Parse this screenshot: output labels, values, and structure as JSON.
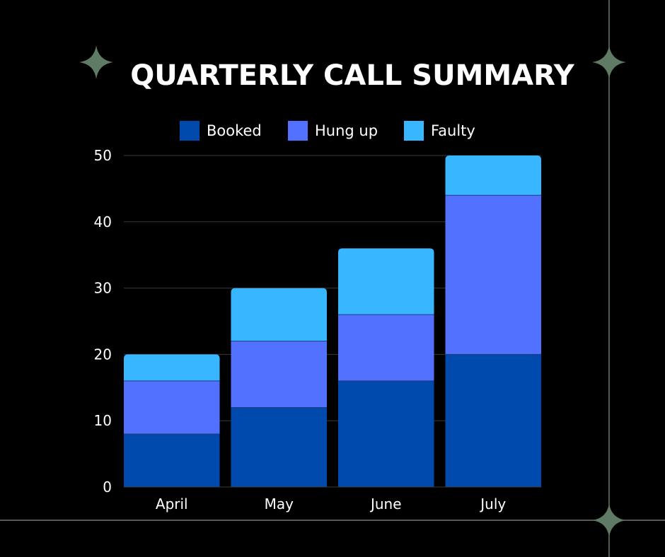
{
  "chart_data": {
    "type": "bar",
    "stacked": true,
    "title": "QUARTERLY CALL SUMMARY",
    "categories": [
      "April",
      "May",
      "June",
      "July"
    ],
    "series": [
      {
        "name": "Booked",
        "values": [
          8,
          12,
          16,
          20
        ],
        "color": "#004aad"
      },
      {
        "name": "Hung up",
        "values": [
          8,
          10,
          10,
          24
        ],
        "color": "#5271ff"
      },
      {
        "name": "Faulty",
        "values": [
          4,
          8,
          10,
          6
        ],
        "color": "#38b6ff"
      }
    ],
    "ylim": [
      0,
      50
    ],
    "yticks": [
      0,
      10,
      20,
      30,
      40,
      50
    ],
    "grid": true,
    "legend_position": "top-center"
  },
  "decor": {
    "sparkle_color": "#5f7a65",
    "frame_line_color": "#6b7a6f",
    "background": "#000000",
    "gridline_color": "#3a3a3a"
  }
}
